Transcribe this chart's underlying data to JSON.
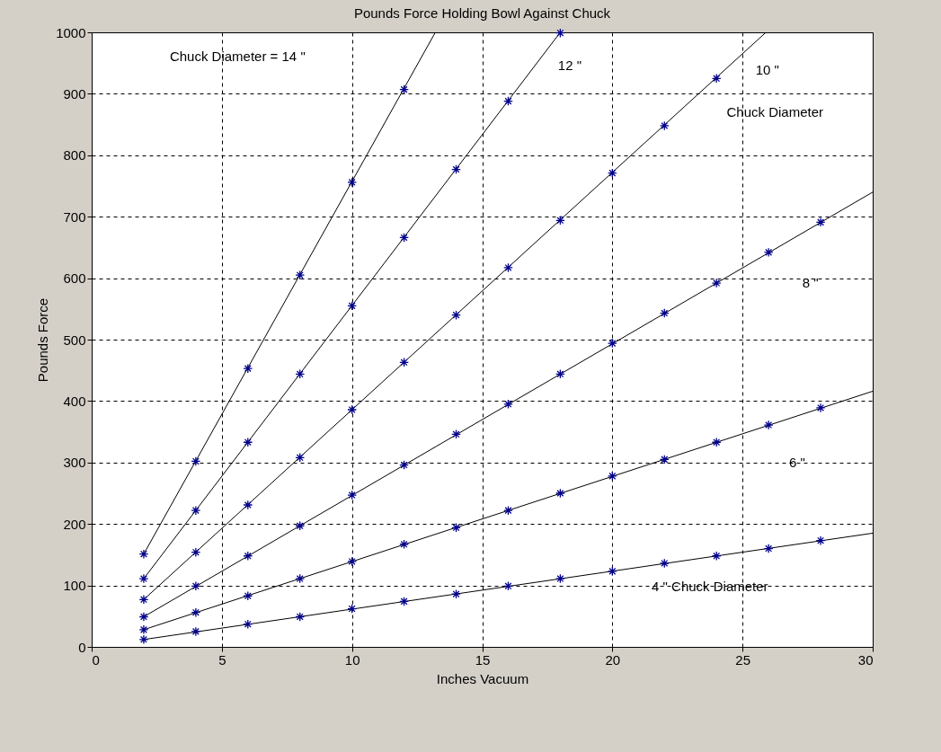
{
  "chart_data": {
    "type": "scatter",
    "title": "Pounds Force Holding Bowl Against Chuck",
    "xlabel": "Inches Vacuum",
    "ylabel": "Pounds Force",
    "xlim": [
      0,
      30
    ],
    "ylim": [
      0,
      1000
    ],
    "xticks": [
      0,
      5,
      10,
      15,
      20,
      25,
      30
    ],
    "yticks": [
      0,
      100,
      200,
      300,
      400,
      500,
      600,
      700,
      800,
      900,
      1000
    ],
    "grid": true,
    "series": [
      {
        "type": "line",
        "color": "#000000",
        "marker": "none",
        "x": [
          2,
          30
        ],
        "values": [
          12,
          185
        ]
      },
      {
        "type": "line",
        "color": "#000000",
        "marker": "none",
        "x": [
          2,
          30
        ],
        "values": [
          28,
          416
        ]
      },
      {
        "type": "line",
        "color": "#000000",
        "marker": "none",
        "x": [
          2,
          30
        ],
        "values": [
          49,
          740
        ]
      },
      {
        "type": "line",
        "color": "#000000",
        "marker": "none",
        "x": [
          2,
          25.9
        ],
        "values": [
          77,
          1000
        ]
      },
      {
        "type": "line",
        "color": "#000000",
        "marker": "none",
        "x": [
          2,
          18
        ],
        "values": [
          111,
          1000
        ]
      },
      {
        "type": "line",
        "color": "#000000",
        "marker": "none",
        "x": [
          2,
          13.2
        ],
        "values": [
          151,
          1000
        ]
      },
      {
        "color": "#00008b",
        "marker": "cross",
        "x": [
          2,
          4,
          6,
          8,
          10,
          12,
          14,
          16,
          18,
          20,
          22,
          24,
          26,
          28
        ],
        "values": [
          12,
          25,
          37,
          49,
          62,
          74,
          86,
          99,
          111,
          123,
          136,
          148,
          160,
          173
        ]
      },
      {
        "color": "#00008b",
        "marker": "cross",
        "x": [
          2,
          4,
          6,
          8,
          10,
          12,
          14,
          16,
          18,
          20,
          22,
          24,
          26,
          28
        ],
        "values": [
          28,
          56,
          83,
          111,
          139,
          167,
          194,
          222,
          250,
          278,
          305,
          333,
          361,
          389
        ]
      },
      {
        "color": "#00008b",
        "marker": "cross",
        "x": [
          2,
          4,
          6,
          8,
          10,
          12,
          14,
          16,
          18,
          20,
          22,
          24,
          26,
          28
        ],
        "values": [
          49,
          99,
          148,
          197,
          247,
          296,
          346,
          395,
          444,
          494,
          543,
          592,
          642,
          691
        ]
      },
      {
        "color": "#00008b",
        "marker": "cross",
        "x": [
          2,
          4,
          6,
          8,
          10,
          12,
          14,
          16,
          18,
          20,
          22,
          24
        ],
        "values": [
          77,
          154,
          231,
          308,
          386,
          463,
          540,
          617,
          694,
          771,
          848,
          925
        ]
      },
      {
        "color": "#00008b",
        "marker": "cross",
        "x": [
          2,
          4,
          6,
          8,
          10,
          12,
          14,
          16,
          18
        ],
        "values": [
          111,
          222,
          333,
          444,
          555,
          666,
          777,
          888,
          999
        ]
      },
      {
        "color": "#00008b",
        "marker": "cross",
        "x": [
          2,
          4,
          6,
          8,
          10,
          12
        ],
        "values": [
          151,
          302,
          453,
          605,
          756,
          907
        ]
      }
    ],
    "annotations": [
      "Chuck Diameter = 14 \"",
      "12 \"",
      "10 \"",
      "Chuck Diameter",
      "8 \"",
      "6 \"",
      "4 \" Chuck Diameter"
    ]
  }
}
